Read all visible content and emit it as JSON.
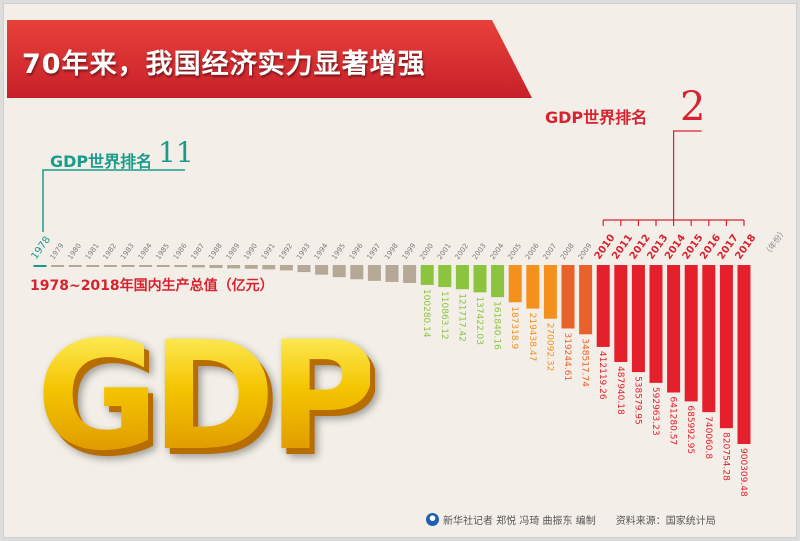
{
  "header": {
    "title": "70年来，我国经济实力显著增强"
  },
  "rank_1978": {
    "label": "GDP世界排名",
    "value": "11",
    "color": "#1a9c8c"
  },
  "rank_2018": {
    "label": "GDP世界排名",
    "value": "2",
    "color": "#d7232f"
  },
  "logo_text": "GDP",
  "footer": {
    "credit": "新华社记者 郑悦 冯琦 曲振东 编制",
    "source": "资料来源：国家统计局"
  },
  "chart_data": {
    "type": "bar",
    "title": "1978~2018年国内生产总值（亿元）",
    "xlabel": "（年份）",
    "categories": [
      "1978",
      "1979",
      "1980",
      "1981",
      "1982",
      "1983",
      "1984",
      "1985",
      "1986",
      "1987",
      "1988",
      "1989",
      "1990",
      "1991",
      "1992",
      "1993",
      "1994",
      "1995",
      "1996",
      "1997",
      "1998",
      "1999",
      "2000",
      "2001",
      "2002",
      "2003",
      "2004",
      "2005",
      "2006",
      "2007",
      "2008",
      "2009",
      "2010",
      "2011",
      "2012",
      "2013",
      "2014",
      "2015",
      "2016",
      "2017",
      "2018"
    ],
    "values": [
      3678.7,
      4100.5,
      4587.6,
      4935.8,
      5373.4,
      6020.9,
      7278.5,
      9098.9,
      10376.2,
      12174.6,
      15180.4,
      17179.7,
      18872.9,
      22005.6,
      27194.5,
      35673.2,
      48637.5,
      61339.9,
      71813.6,
      79715,
      85195.5,
      90564.4,
      100280.14,
      110863.12,
      121717.42,
      137422.03,
      161840.16,
      187318.9,
      219438.47,
      270092.32,
      319244.61,
      348517.74,
      412119.26,
      487940.18,
      538579.95,
      592963.23,
      641280.57,
      685992.95,
      740060.8,
      820754.28,
      900309.48
    ],
    "value_labels": {
      "2000": "100280.14",
      "2001": "110863.12",
      "2002": "121717.42",
      "2003": "137422.03",
      "2004": "161840.16",
      "2005": "187318.9",
      "2006": "219438.47",
      "2007": "270092.32",
      "2008": "319244.61",
      "2009": "348517.74",
      "2010": "412119.26",
      "2011": "487940.18",
      "2012": "538579.95",
      "2013": "592963.23",
      "2014": "641280.57",
      "2015": "685992.95",
      "2016": "740060.8",
      "2017": "820754.28",
      "2018": "900309.48"
    },
    "orientation": "bars hang downward from baseline",
    "colors": {
      "1978-1999": "#b5a897",
      "2000-2004": "#8cc43f",
      "2005-2007": "#f3901e",
      "2008-2009": "#e9622a",
      "2010-2018": "#e4202d",
      "year_1978": "#1a9c8c",
      "years_default": "#7a7a7a",
      "years_2010_2018": "#d7232f"
    }
  }
}
